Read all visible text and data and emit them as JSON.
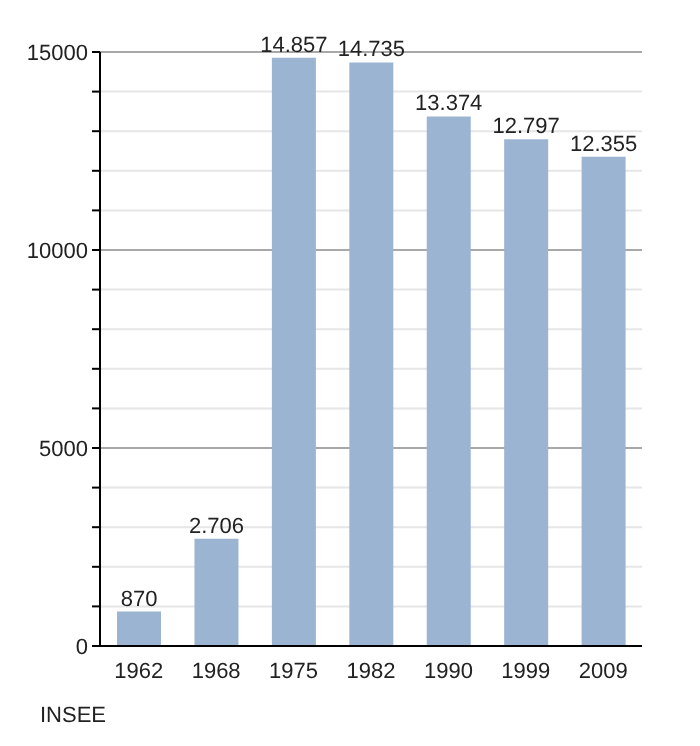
{
  "chart_data": {
    "type": "bar",
    "categories": [
      "1962",
      "1968",
      "1975",
      "1982",
      "1990",
      "1999",
      "2009"
    ],
    "values": [
      870,
      2706,
      14857,
      14735,
      13374,
      12797,
      12355
    ],
    "value_labels": [
      "870",
      "2.706",
      "14.857",
      "14.735",
      "13.374",
      "12.797",
      "12.355"
    ],
    "color": "#9bb4d1",
    "ylim": [
      0,
      15000
    ],
    "yticks": [
      0,
      {
        "value": 1000,
        "label": null
      },
      {
        "value": 2000,
        "label": null
      },
      {
        "value": 3000,
        "label": null
      },
      {
        "value": 4000,
        "label": null
      },
      5000,
      {
        "value": 6000,
        "label": null
      },
      {
        "value": 7000,
        "label": null
      },
      {
        "value": 8000,
        "label": null
      },
      {
        "value": 9000,
        "label": null
      },
      10000,
      {
        "value": 11000,
        "label": null
      },
      {
        "value": 12000,
        "label": null
      },
      {
        "value": 13000,
        "label": null
      },
      {
        "value": 14000,
        "label": null
      },
      15000
    ],
    "grid": "y",
    "annotations": [
      "INSEE"
    ]
  }
}
